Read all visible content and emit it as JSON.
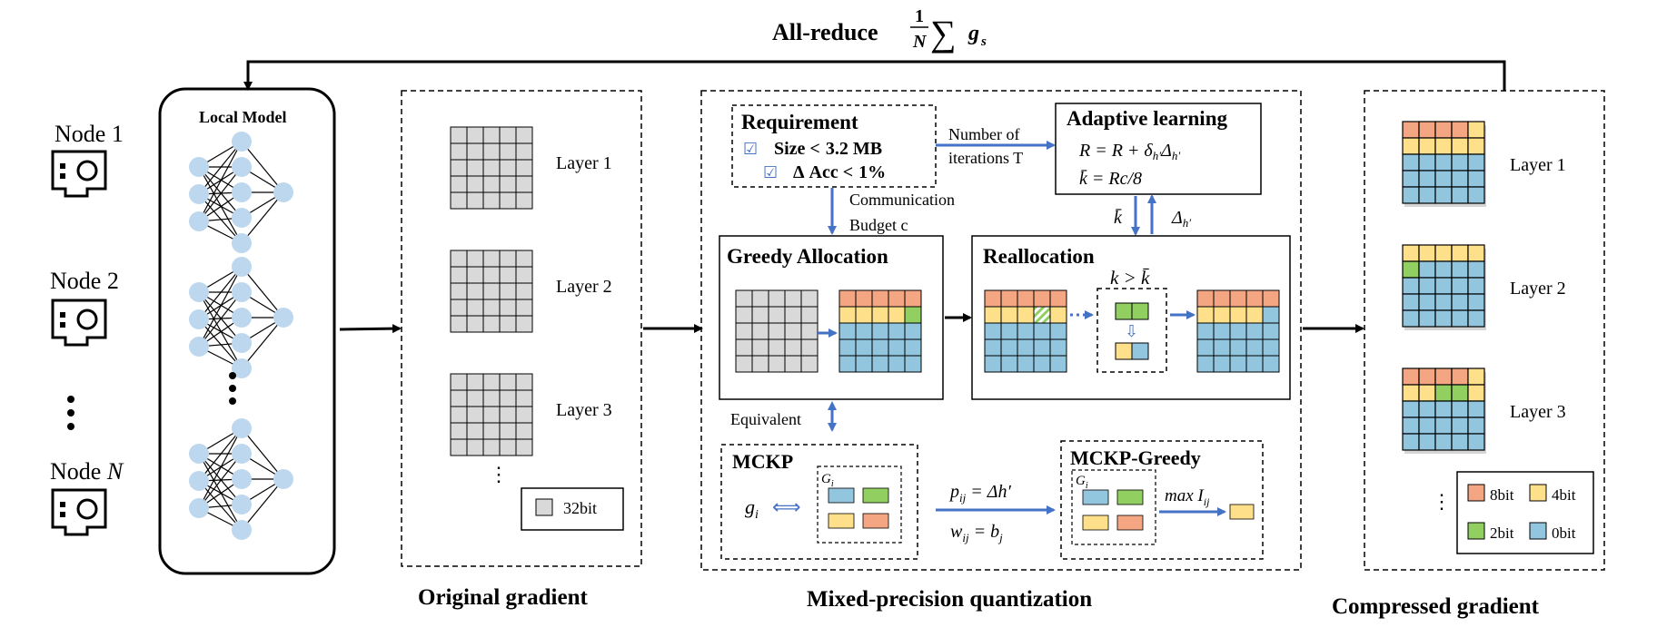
{
  "top": {
    "allreduce_label": "All-reduce",
    "frac_num": "1",
    "frac_den": "N",
    "sum_symbol": "∑",
    "sum_term": "g",
    "sum_sub": "s"
  },
  "nodes": [
    {
      "label": "Node 1"
    },
    {
      "label": "Node 2"
    },
    {
      "label": "Node ",
      "italic_suffix": "N"
    }
  ],
  "local_model": {
    "title": "Local Model"
  },
  "original_gradient": {
    "caption": "Original gradient",
    "layers": [
      "Layer 1",
      "Layer 2",
      "Layer 3"
    ],
    "legend_label": "32bit",
    "ellipsis": "⋮"
  },
  "mixed_precision": {
    "caption": "Mixed-precision quantization",
    "requirement": {
      "title": "Requirement",
      "check_symbol": "☑",
      "item1_label": "Size <",
      "item1_value": "3.2 MB",
      "item2_symbol": "Δ",
      "item2_label": "Acc <",
      "item2_value": "1%"
    },
    "arrow_iterations_line1": "Number of",
    "arrow_iterations_line2": "iterations T",
    "adaptive": {
      "title": "Adaptive learning",
      "eq1": "R = R + δ",
      "eq1_sub1": "h′",
      "eq1_delta": "Δ",
      "eq1_sub2": "h′",
      "eq2": "k̄ = Rc/8"
    },
    "budget_line1": "Communication",
    "budget_line2": "Budget c",
    "kbar_label": "k̄",
    "delta_label": "Δ",
    "delta_sub": "h′",
    "greedy": {
      "title": "Greedy Allocation"
    },
    "realloc": {
      "title": "Reallocation",
      "condition": "k > k̄",
      "down_arrow": "⇩"
    },
    "equivalent_label": "Equivalent",
    "mckp": {
      "title": "MCKP",
      "g_label": "g",
      "g_sub": "i",
      "G_label": "G",
      "G_sub": "i",
      "double_arrow": "⟺"
    },
    "p_eq": "p",
    "p_sub": "ij",
    "p_rhs": " = Δh′",
    "w_eq": "w",
    "w_sub": "ij",
    "w_rhs": " = b",
    "w_rhs_sub": "j",
    "mckp_greedy": {
      "title": "MCKP-Greedy",
      "G_label": "G",
      "G_sub": "i",
      "max_label": "max I",
      "max_sub": "ij"
    }
  },
  "compressed_gradient": {
    "caption": "Compressed gradient",
    "layers": [
      "Layer 1",
      "Layer 2",
      "Layer 3"
    ],
    "ellipsis": "⋮",
    "legend": [
      {
        "label": "8bit",
        "color": "#f4a582"
      },
      {
        "label": "4bit",
        "color": "#fee08b"
      },
      {
        "label": "2bit",
        "color": "#91cf60"
      },
      {
        "label": "0bit",
        "color": "#92c5de"
      }
    ]
  },
  "colors": {
    "gray_cell": "#d9d9d9",
    "orange": "#f4a582",
    "yellow": "#fee08b",
    "green": "#91cf60",
    "blue": "#92c5de",
    "arrow_blue": "#4472c4",
    "neuron": "#bdd7ee"
  }
}
